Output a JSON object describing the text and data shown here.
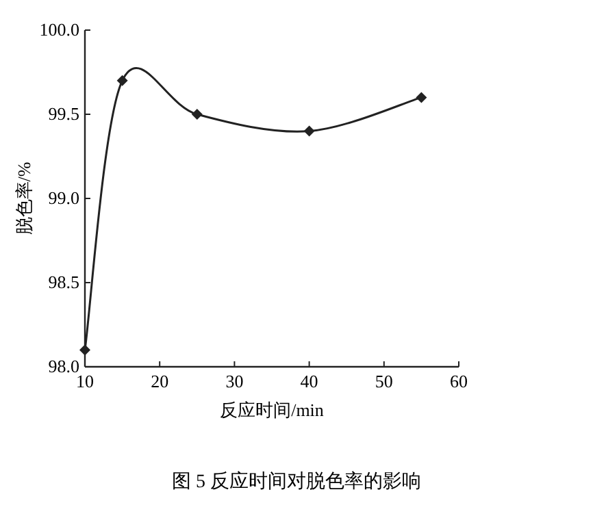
{
  "chart_data": {
    "type": "line",
    "xlabel": "反应时间/min",
    "ylabel": "脱色率/%",
    "annotations": [
      "图 5  反应时间对脱色率的影响"
    ],
    "x": [
      10,
      15,
      25,
      40,
      55
    ],
    "series": [
      {
        "color": "#222222",
        "values": [
          98.1,
          99.7,
          99.5,
          99.4,
          99.6
        ]
      }
    ],
    "xlim": [
      10,
      60
    ],
    "xticks": [
      10,
      20,
      30,
      40,
      50,
      60
    ],
    "ylim": [
      98.0,
      100.0
    ],
    "yticks": [
      {
        "value": 98.0,
        "label": "98.0"
      },
      {
        "value": 98.5,
        "label": "98.5"
      },
      {
        "value": 99.0,
        "label": "99.0"
      },
      {
        "value": 99.5,
        "label": "99.5"
      },
      {
        "value": 100.0,
        "label": "100.0"
      }
    ],
    "grid": false,
    "marker": "diamond",
    "line_style": "solid"
  }
}
